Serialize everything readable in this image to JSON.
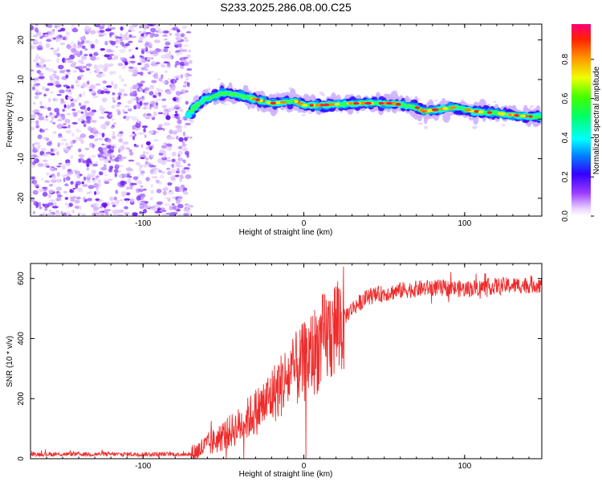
{
  "chart_data": [
    {
      "type": "heatmap",
      "title": "S233.2025.286.08.00.C25",
      "xlabel": "Height of straight line (km)",
      "ylabel": "Frequency (Hz)",
      "xlim": [
        -170,
        148
      ],
      "ylim": [
        -24.5,
        24
      ],
      "xticks": [
        -100,
        0,
        100
      ],
      "yticks": [
        -20,
        -10,
        0,
        10,
        20
      ],
      "colorbar": {
        "label": "Normalized spectral amplitude",
        "range": [
          0.0,
          0.98
        ],
        "ticks": [
          "0.0",
          "0.2",
          "0.4",
          "0.6",
          "0.8"
        ]
      },
      "ridge": {
        "description_points_km_hz": [
          [
            -72,
            1
          ],
          [
            -68,
            3
          ],
          [
            -62,
            5
          ],
          [
            -50,
            6.5
          ],
          [
            -40,
            6
          ],
          [
            -30,
            5
          ],
          [
            -20,
            4
          ],
          [
            -5,
            4.5
          ],
          [
            0,
            3.5
          ],
          [
            10,
            3.5
          ],
          [
            30,
            4
          ],
          [
            55,
            4
          ],
          [
            70,
            3
          ],
          [
            75,
            2
          ],
          [
            85,
            2.5
          ],
          [
            95,
            3
          ],
          [
            105,
            2
          ],
          [
            120,
            1.5
          ],
          [
            135,
            0.8
          ],
          [
            148,
            0.5
          ]
        ]
      },
      "noise_region_km": [
        -170,
        -72
      ]
    },
    {
      "type": "line",
      "xlabel": "Height of straight line (km)",
      "ylabel": "SNR (10 * v/v)",
      "xlim": [
        -170,
        148
      ],
      "ylim": [
        0,
        650
      ],
      "xticks": [
        -100,
        0,
        100
      ],
      "yticks": [
        0,
        200,
        400,
        600
      ],
      "series": [
        {
          "name": "SNR",
          "color": "#ee2c2c",
          "trend_points_km_snr": [
            [
              -170,
              15
            ],
            [
              -70,
              15
            ],
            [
              -65,
              30
            ],
            [
              -55,
              60
            ],
            [
              -40,
              110
            ],
            [
              -25,
              180
            ],
            [
              -10,
              270
            ],
            [
              0,
              320
            ],
            [
              10,
              380
            ],
            [
              20,
              440
            ],
            [
              30,
              500
            ],
            [
              40,
              540
            ],
            [
              60,
              560
            ],
            [
              80,
              570
            ],
            [
              100,
              565
            ],
            [
              120,
              575
            ],
            [
              148,
              580
            ]
          ]
        }
      ]
    }
  ]
}
